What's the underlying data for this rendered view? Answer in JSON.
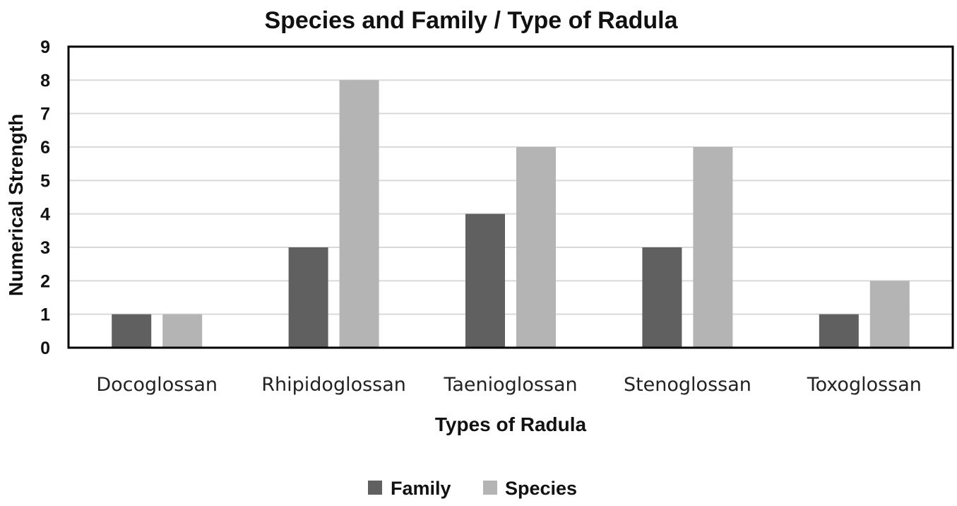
{
  "chart_data": {
    "type": "bar",
    "title": "Species and Family  / Type of Radula",
    "xlabel": "Types of Radula",
    "ylabel": "Numerical Strength",
    "categories": [
      "Docoglossan",
      "Rhipidoglossan",
      "Taenioglossan",
      "Stenoglossan",
      "Toxoglossan"
    ],
    "series": [
      {
        "name": "Family",
        "values": [
          1,
          3,
          4,
          3,
          1
        ],
        "color": "#606060"
      },
      {
        "name": "Species",
        "values": [
          1,
          8,
          6,
          6,
          2
        ],
        "color": "#b4b4b4"
      }
    ],
    "ylim": [
      0,
      9
    ],
    "yticks": [
      "0",
      "1",
      "2",
      "3",
      "4",
      "5",
      "6",
      "7",
      "8",
      "9"
    ],
    "grid": true,
    "legend_position": "bottom"
  }
}
